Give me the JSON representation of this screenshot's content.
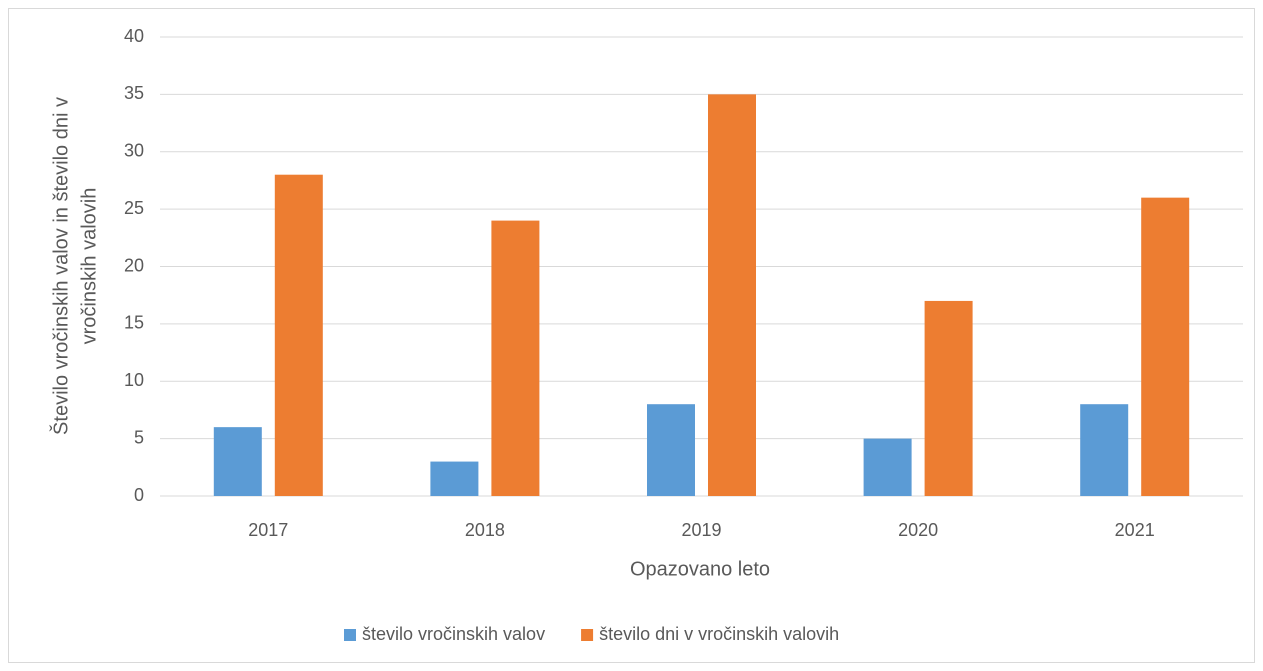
{
  "chart_data": {
    "type": "bar",
    "x_label": "Opazovano leto",
    "y_label": [
      "Število  vročinskih valov in število dni v",
      "vročinskih valovih"
    ],
    "categories": [
      "2017",
      "2018",
      "2019",
      "2020",
      "2021"
    ],
    "series": [
      {
        "name": "število vročinskih valov",
        "color": "#5b9bd5",
        "values": [
          6,
          3,
          8,
          5,
          8
        ]
      },
      {
        "name": "število dni v vročinskih valovih",
        "color": "#ed7d31",
        "values": [
          28,
          24,
          35,
          17,
          26
        ]
      }
    ],
    "ylim": [
      0,
      40
    ],
    "yticks": [
      0,
      5,
      10,
      15,
      20,
      25,
      30,
      35,
      40
    ],
    "grid": true,
    "legend": "bottom"
  }
}
